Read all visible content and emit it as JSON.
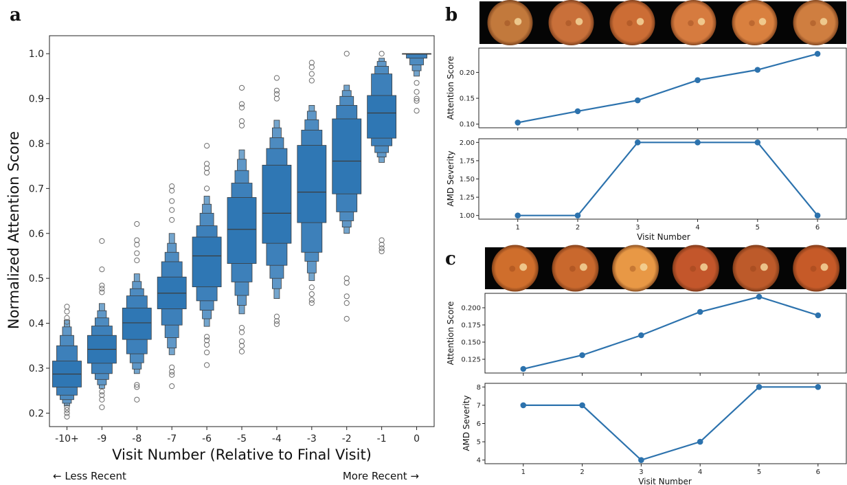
{
  "figure": {
    "panel_labels": [
      "a",
      "b",
      "c"
    ],
    "notes": {
      "left": "← Less Recent",
      "right": "More Recent →"
    }
  },
  "colors": {
    "primary": "#2c72ad",
    "box_fill": "#2f77b4",
    "outlier": "#6b6b6b"
  },
  "chart_data": [
    {
      "id": "a",
      "type": "boxen",
      "xlabel": "Visit Number (Relative to Final Visit)",
      "ylabel": "Normalized Attention Score",
      "ylim": [
        0.17,
        1.04
      ],
      "yticks": [
        "0.2",
        "0.3",
        "0.4",
        "0.5",
        "0.6",
        "0.7",
        "0.8",
        "0.9",
        "1.0"
      ],
      "categories": [
        "-10+",
        "-9",
        "-8",
        "-7",
        "-6",
        "-5",
        "-4",
        "-3",
        "-2",
        "-1",
        "0"
      ],
      "grid": false,
      "boxes": [
        {
          "x": "-10+",
          "median": 0.287,
          "levels": [
            [
              0.258,
              0.316
            ],
            [
              0.24,
              0.35
            ],
            [
              0.23,
              0.373
            ],
            [
              0.222,
              0.392
            ],
            [
              0.216,
              0.407
            ]
          ],
          "outliers": [
            0.192,
            0.2,
            0.207,
            0.213,
            0.403,
            0.412,
            0.426,
            0.437
          ]
        },
        {
          "x": "-9",
          "median": 0.342,
          "levels": [
            [
              0.311,
              0.373
            ],
            [
              0.288,
              0.394
            ],
            [
              0.275,
              0.412
            ],
            [
              0.263,
              0.428
            ],
            [
              0.255,
              0.444
            ]
          ],
          "outliers": [
            0.213,
            0.23,
            0.24,
            0.248,
            0.469,
            0.477,
            0.484,
            0.52,
            0.583
          ]
        },
        {
          "x": "-8",
          "median": 0.401,
          "levels": [
            [
              0.364,
              0.434
            ],
            [
              0.332,
              0.461
            ],
            [
              0.312,
              0.477
            ],
            [
              0.298,
              0.493
            ],
            [
              0.288,
              0.51
            ]
          ],
          "outliers": [
            0.23,
            0.258,
            0.263,
            0.54,
            0.556,
            0.575,
            0.585,
            0.621
          ]
        },
        {
          "x": "-7",
          "median": 0.467,
          "levels": [
            [
              0.432,
              0.503
            ],
            [
              0.396,
              0.537
            ],
            [
              0.368,
              0.558
            ],
            [
              0.345,
              0.578
            ],
            [
              0.33,
              0.6
            ]
          ],
          "outliers": [
            0.26,
            0.285,
            0.292,
            0.302,
            0.63,
            0.652,
            0.672,
            0.695,
            0.705
          ]
        },
        {
          "x": "-6",
          "median": 0.55,
          "levels": [
            [
              0.481,
              0.592
            ],
            [
              0.45,
              0.617
            ],
            [
              0.429,
              0.645
            ],
            [
              0.41,
              0.665
            ],
            [
              0.393,
              0.683
            ]
          ],
          "outliers": [
            0.307,
            0.335,
            0.352,
            0.362,
            0.37,
            0.7,
            0.735,
            0.745,
            0.755,
            0.795
          ]
        },
        {
          "x": "-5",
          "median": 0.609,
          "levels": [
            [
              0.533,
              0.68
            ],
            [
              0.492,
              0.712
            ],
            [
              0.462,
              0.74
            ],
            [
              0.44,
              0.765
            ],
            [
              0.421,
              0.786
            ]
          ],
          "outliers": [
            0.337,
            0.35,
            0.36,
            0.38,
            0.39,
            0.84,
            0.85,
            0.88,
            0.888,
            0.924
          ]
        },
        {
          "x": "-4",
          "median": 0.645,
          "levels": [
            [
              0.578,
              0.752
            ],
            [
              0.529,
              0.789
            ],
            [
              0.5,
              0.813
            ],
            [
              0.477,
              0.835
            ],
            [
              0.455,
              0.852
            ]
          ],
          "outliers": [
            0.398,
            0.405,
            0.415,
            0.9,
            0.91,
            0.918,
            0.946
          ]
        },
        {
          "x": "-3",
          "median": 0.692,
          "levels": [
            [
              0.624,
              0.796
            ],
            [
              0.558,
              0.83
            ],
            [
              0.538,
              0.853
            ],
            [
              0.512,
              0.872
            ],
            [
              0.495,
              0.885
            ]
          ],
          "outliers": [
            0.445,
            0.452,
            0.465,
            0.48,
            0.94,
            0.955,
            0.97,
            0.98
          ]
        },
        {
          "x": "-2",
          "median": 0.761,
          "levels": [
            [
              0.688,
              0.855
            ],
            [
              0.648,
              0.885
            ],
            [
              0.628,
              0.905
            ],
            [
              0.614,
              0.918
            ],
            [
              0.6,
              0.93
            ]
          ],
          "outliers": [
            0.41,
            0.445,
            0.46,
            0.49,
            0.5,
            1.0
          ]
        },
        {
          "x": "-1",
          "median": 0.868,
          "levels": [
            [
              0.812,
              0.907
            ],
            [
              0.795,
              0.955
            ],
            [
              0.78,
              0.972
            ],
            [
              0.77,
              0.983
            ],
            [
              0.758,
              0.99
            ]
          ],
          "outliers": [
            0.56,
            0.567,
            0.575,
            0.585,
            1.0
          ]
        },
        {
          "x": "0",
          "median": 1.0,
          "levels": [
            [
              0.999,
              1.0
            ],
            [
              0.99,
              1.0
            ],
            [
              0.975,
              1.0
            ],
            [
              0.962,
              1.0
            ],
            [
              0.95,
              1.0
            ]
          ],
          "outliers": [
            0.873,
            0.895,
            0.9,
            0.915,
            0.935
          ]
        }
      ]
    },
    {
      "id": "b-attention",
      "type": "line",
      "x": [
        1,
        2,
        3,
        4,
        5,
        6
      ],
      "y": [
        0.103,
        0.125,
        0.146,
        0.185,
        0.205,
        0.236
      ],
      "ylabel": "Attention Score",
      "ylim": [
        0.093,
        0.247
      ],
      "yticks": [
        "0.10",
        "0.15",
        "0.20"
      ],
      "xlim": [
        0.35,
        6.48
      ],
      "xticks": []
    },
    {
      "id": "b-severity",
      "type": "line",
      "x": [
        1,
        2,
        3,
        4,
        5,
        6
      ],
      "y": [
        1,
        1,
        2,
        2,
        2,
        1
      ],
      "ylabel": "AMD Severity",
      "xlabel": "Visit Number",
      "ylim": [
        0.95,
        2.05
      ],
      "yticks": [
        "1.00",
        "1.25",
        "1.50",
        "1.75",
        "2.00"
      ],
      "xlim": [
        0.35,
        6.48
      ],
      "xticks": [
        "1",
        "2",
        "3",
        "4",
        "5",
        "6"
      ]
    },
    {
      "id": "c-attention",
      "type": "line",
      "x": [
        1,
        2,
        3,
        4,
        5,
        6
      ],
      "y": [
        0.111,
        0.131,
        0.16,
        0.194,
        0.216,
        0.189
      ],
      "ylabel": "Attention Score",
      "ylim": [
        0.105,
        0.221
      ],
      "yticks": [
        "0.125",
        "0.150",
        "0.175",
        "0.200"
      ],
      "xlim": [
        0.35,
        6.48
      ],
      "xticks": []
    },
    {
      "id": "c-severity",
      "type": "line",
      "x": [
        1,
        2,
        3,
        4,
        5,
        6
      ],
      "y": [
        7,
        7,
        4,
        5,
        8,
        8
      ],
      "ylabel": "AMD Severity",
      "xlabel": "Visit Number",
      "ylim": [
        3.8,
        8.2
      ],
      "yticks": [
        "4",
        "5",
        "6",
        "7",
        "8"
      ],
      "xlim": [
        0.35,
        6.48
      ],
      "xticks": [
        "1",
        "2",
        "3",
        "4",
        "5",
        "6"
      ]
    }
  ],
  "fundus_images": {
    "b": [
      {
        "visit": 1,
        "tone": "#c2793c"
      },
      {
        "visit": 2,
        "tone": "#c9703a"
      },
      {
        "visit": 3,
        "tone": "#cc6d35"
      },
      {
        "visit": 4,
        "tone": "#d67b3f"
      },
      {
        "visit": 5,
        "tone": "#d9803f"
      },
      {
        "visit": 6,
        "tone": "#cf7e40"
      }
    ],
    "c": [
      {
        "visit": 1,
        "tone": "#cf6e2c"
      },
      {
        "visit": 2,
        "tone": "#c9682d"
      },
      {
        "visit": 3,
        "tone": "#e89845"
      },
      {
        "visit": 4,
        "tone": "#c3562b"
      },
      {
        "visit": 5,
        "tone": "#bd5a2a"
      },
      {
        "visit": 6,
        "tone": "#c65a28"
      }
    ]
  }
}
